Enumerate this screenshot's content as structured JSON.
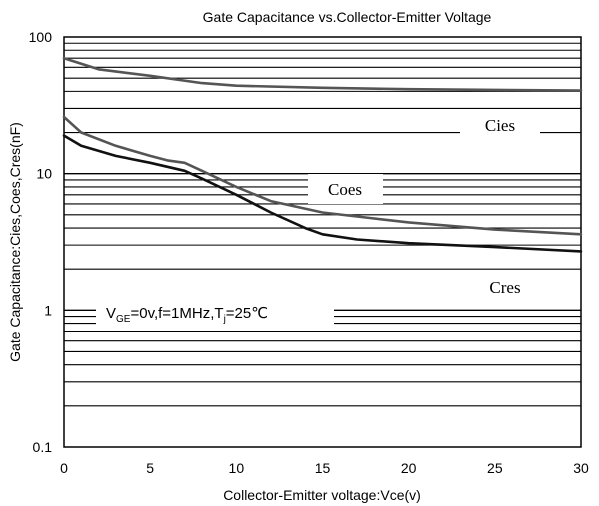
{
  "chart_data": {
    "type": "line",
    "title": "Gate Capacitance vs.Collector-Emitter Voltage",
    "xlabel": "Collector-Emitter voltage:Vce(v)",
    "ylabel": "Gate Capacitance:Cies,Coes,Cres(nF)",
    "xlim": [
      0,
      30
    ],
    "ylim": [
      0.1,
      100
    ],
    "yscale": "log",
    "grid": true,
    "x_ticks": [
      "0",
      "5",
      "10",
      "15",
      "20",
      "25",
      "30"
    ],
    "y_ticks": [
      "0.1",
      "1",
      "10",
      "100"
    ],
    "condition": {
      "prefix": "V",
      "subscript": "GE",
      "mid": "=0v,f=1MHz,T",
      "subscript2": "j",
      "suffix": "=25℃"
    },
    "series": [
      {
        "name": "Cies",
        "color": "#555555",
        "x": [
          0,
          2,
          5,
          8,
          10,
          15,
          20,
          25,
          30
        ],
        "y": [
          70,
          58,
          52,
          46,
          44,
          42.5,
          41.5,
          41,
          40.5
        ]
      },
      {
        "name": "Coes",
        "color": "#555555",
        "x": [
          0,
          1,
          3,
          5,
          6,
          7,
          8,
          10,
          12,
          15,
          18,
          20,
          25,
          30
        ],
        "y": [
          26,
          20,
          16,
          13.5,
          12.5,
          12,
          10.5,
          8,
          6.3,
          5.2,
          4.7,
          4.4,
          3.9,
          3.6
        ]
      },
      {
        "name": "Cres",
        "color": "#111111",
        "x": [
          0,
          1,
          3,
          5,
          7,
          8,
          10,
          12,
          14,
          15,
          17,
          20,
          25,
          30
        ],
        "y": [
          19,
          16,
          13.5,
          12,
          10.5,
          9.2,
          7,
          5.2,
          4,
          3.6,
          3.3,
          3.1,
          2.9,
          2.7
        ]
      }
    ]
  }
}
